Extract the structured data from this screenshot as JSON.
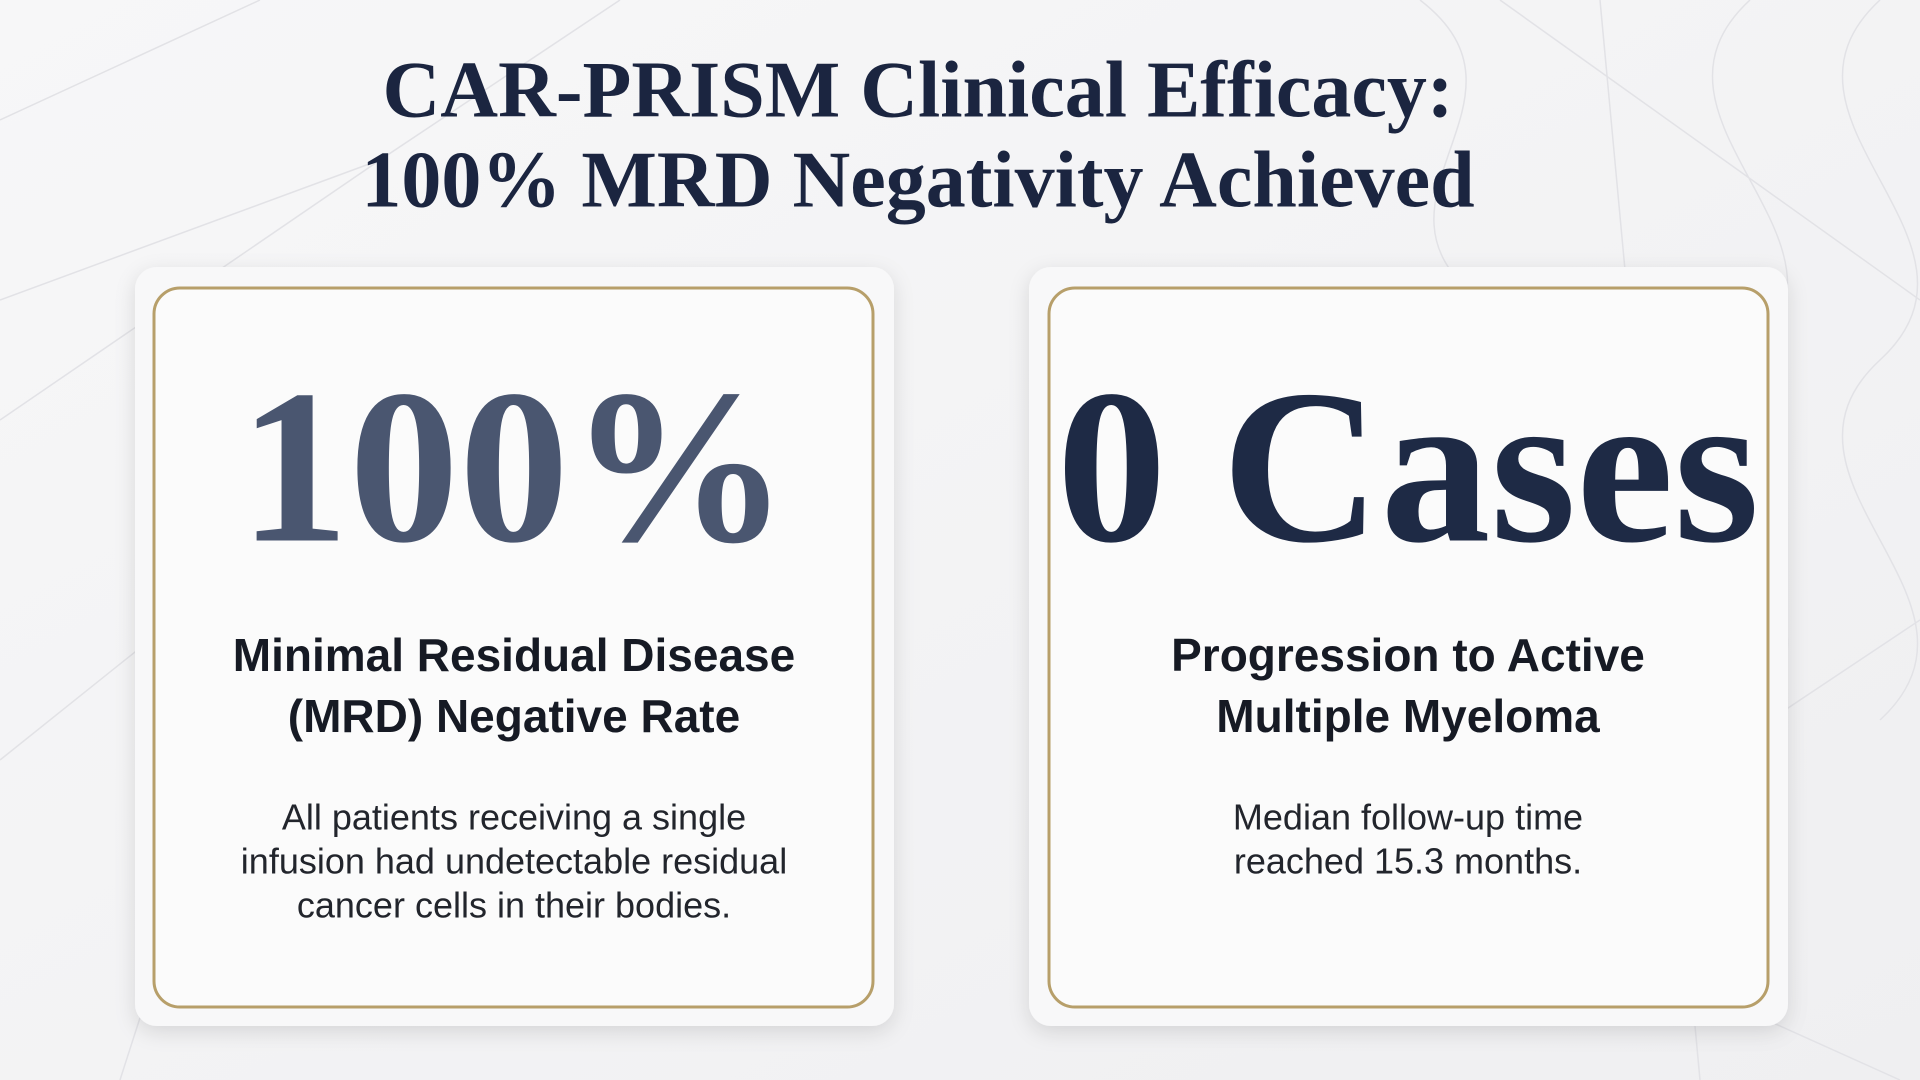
{
  "title": {
    "lines": [
      "CAR-PRISM Clinical Efficacy:",
      "100% MRD Negativity Achieved"
    ]
  },
  "cards": [
    {
      "stat": "100%",
      "heading": [
        "Minimal Residual Disease",
        "(MRD) Negative Rate"
      ],
      "body": [
        "All patients receiving a single",
        "infusion had undetectable residual",
        "cancer cells in their bodies."
      ]
    },
    {
      "stat": "0 Cases",
      "heading": [
        "Progression to Active",
        "Multiple Myeloma"
      ],
      "body": [
        "Median follow-up time",
        "reached 15.3 months."
      ]
    }
  ]
}
